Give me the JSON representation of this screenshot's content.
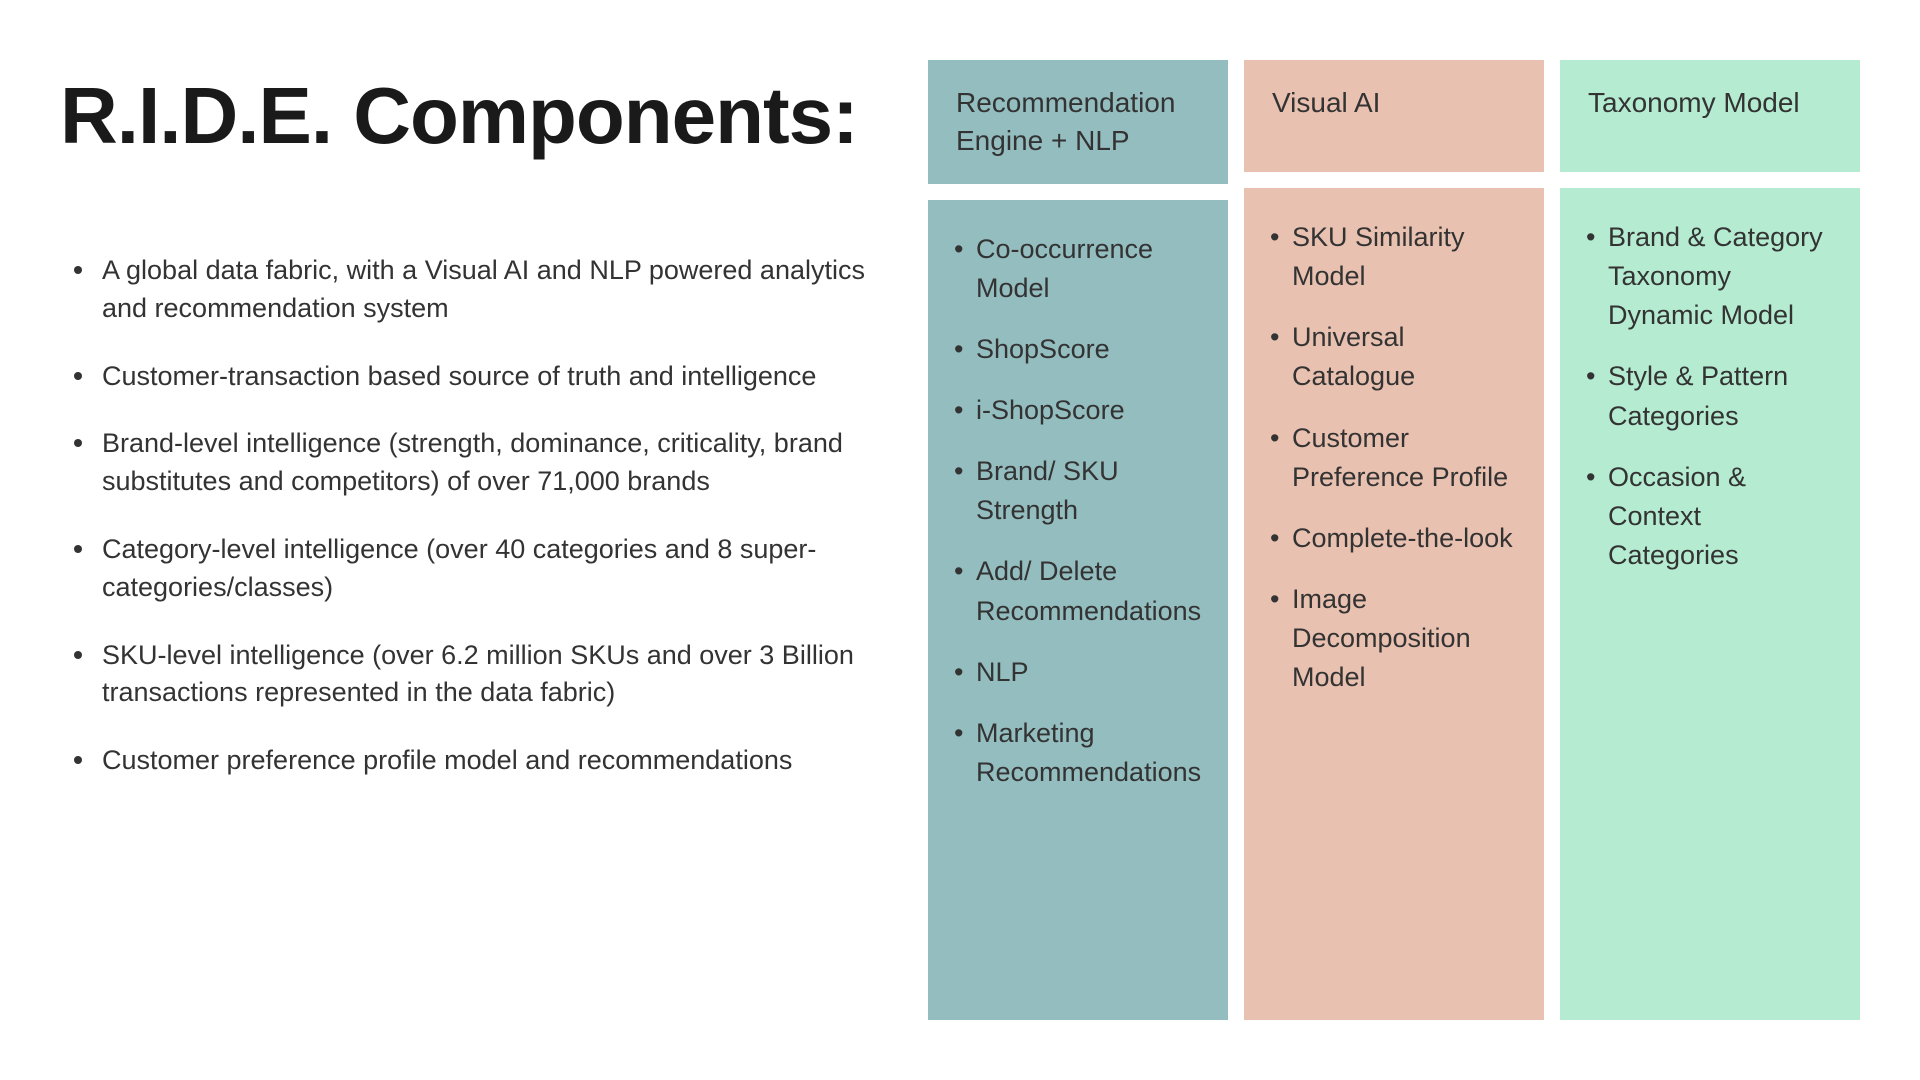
{
  "title": "R.I.D.E. Components:",
  "title_fontsize": 80,
  "title_color": "#1a1a1a",
  "body_text_color": "#333333",
  "body_fontsize": 27,
  "background_color": "#ffffff",
  "descriptions": [
    "A global data fabric, with a Visual AI and NLP powered analytics and recommendation system",
    "Customer-transaction based source of truth and intelligence",
    "Brand-level intelligence (strength, dominance, criticality, brand substitutes and competitors) of over 71,000 brands",
    "Category-level intelligence (over 40 categories and 8 super-categories/classes)",
    "SKU-level intelligence (over 6.2 million SKUs and over 3 Billion transactions represented in the data fabric)",
    "Customer preference profile model and recommendations"
  ],
  "columns": [
    {
      "header": "Recommendation Engine + NLP",
      "header_bg": "#94bdbf",
      "body_bg": "#94bdbf",
      "items": [
        "Co-occurrence Model",
        "ShopScore",
        "i-ShopScore",
        "Brand/ SKU Strength",
        "Add/ Delete Recommendations",
        "NLP",
        "Marketing Recommendations"
      ]
    },
    {
      "header": "Visual AI",
      "header_bg": "#e9c1b0",
      "body_bg": "#e9c1b0",
      "items": [
        "SKU Similarity Model",
        "Universal Catalogue",
        "Customer Preference Profile",
        "Complete-the-look",
        "Image Decomposition Model"
      ]
    },
    {
      "header": "Taxonomy Model",
      "header_bg": "#b4ebd1",
      "body_bg": "#b4ebd1",
      "items": [
        "Brand & Category Taxonomy Dynamic Model",
        "Style & Pattern Categories",
        "Occasion & Context Categories"
      ]
    }
  ]
}
